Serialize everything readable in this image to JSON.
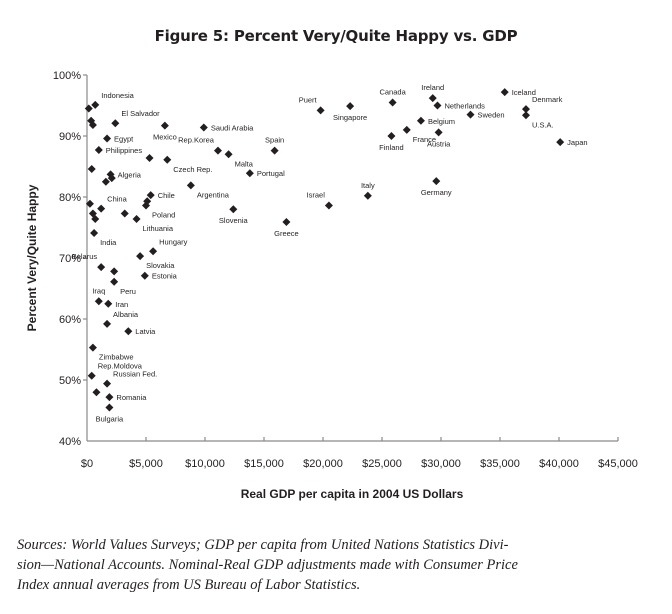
{
  "chart_data": {
    "type": "scatter",
    "title": "Figure 5: Percent Very/Quite Happy vs. GDP",
    "xlabel": "Real GDP per capita in 2004 US Dollars",
    "ylabel": "Percent Very/Quite Happy",
    "xlim": [
      0,
      45000
    ],
    "ylim": [
      40,
      100
    ],
    "x_ticks": [
      0,
      5000,
      10000,
      15000,
      20000,
      25000,
      30000,
      35000,
      40000,
      45000
    ],
    "x_tick_labels": [
      "$0",
      "$5,000",
      "$10,000",
      "$15,000",
      "$20,000",
      "$25,000",
      "$30,000",
      "$35,000",
      "$40,000",
      "$45,000"
    ],
    "y_ticks": [
      40,
      50,
      60,
      70,
      80,
      90,
      100
    ],
    "y_tick_labels": [
      "40%",
      "50%",
      "60%",
      "70%",
      "80%",
      "90%",
      "100%"
    ],
    "grid": false,
    "legend": "none",
    "marker": "diamond",
    "marker_color": "#231f20",
    "points": [
      {
        "label": "Indonesia",
        "x": 700,
        "y": 95.1,
        "label_pos": "above-right"
      },
      {
        "label": "",
        "x": 150,
        "y": 94.5
      },
      {
        "label": "",
        "x": 350,
        "y": 92.5
      },
      {
        "label": "",
        "x": 500,
        "y": 91.8
      },
      {
        "label": "El Salvador",
        "x": 2400,
        "y": 92.1,
        "label_pos": "above-right"
      },
      {
        "label": "Mexico",
        "x": 6600,
        "y": 91.7,
        "label_pos": "below"
      },
      {
        "label": "Saudi Arabia",
        "x": 9900,
        "y": 91.4,
        "label_pos": "right"
      },
      {
        "label": "Egypt",
        "x": 1700,
        "y": 89.6,
        "label_pos": "right"
      },
      {
        "label": "Philippines",
        "x": 1000,
        "y": 87.7,
        "label_pos": "right"
      },
      {
        "label": "",
        "x": 5300,
        "y": 86.4
      },
      {
        "label": "Czech Rep.",
        "x": 6800,
        "y": 86.1,
        "label_pos": "below-right"
      },
      {
        "label": "Rep.Korea",
        "x": 11100,
        "y": 87.6,
        "label_pos": "above-left"
      },
      {
        "label": "Malta",
        "x": 12000,
        "y": 87.0,
        "label_pos": "below-right"
      },
      {
        "label": "Spain",
        "x": 15900,
        "y": 87.6,
        "label_pos": "above"
      },
      {
        "label": "",
        "x": 400,
        "y": 84.6
      },
      {
        "label": "Algeria",
        "x": 2000,
        "y": 83.7,
        "label_pos": "right"
      },
      {
        "label": "",
        "x": 2100,
        "y": 83.1
      },
      {
        "label": "",
        "x": 1600,
        "y": 82.5
      },
      {
        "label": "Portugal",
        "x": 13800,
        "y": 83.9,
        "label_pos": "right"
      },
      {
        "label": "Argentina",
        "x": 8800,
        "y": 81.9,
        "label_pos": "below-right"
      },
      {
        "label": "Chile",
        "x": 5400,
        "y": 80.3,
        "label_pos": "right"
      },
      {
        "label": "",
        "x": 5100,
        "y": 79.3
      },
      {
        "label": "Poland",
        "x": 5000,
        "y": 78.6,
        "label_pos": "below-right"
      },
      {
        "label": "China",
        "x": 1200,
        "y": 78.1,
        "label_pos": "above-right"
      },
      {
        "label": "",
        "x": 250,
        "y": 78.9
      },
      {
        "label": "",
        "x": 500,
        "y": 77.3
      },
      {
        "label": "",
        "x": 700,
        "y": 76.4
      },
      {
        "label": "",
        "x": 3200,
        "y": 77.3
      },
      {
        "label": "Lithuania",
        "x": 4200,
        "y": 76.4,
        "label_pos": "below-right"
      },
      {
        "label": "Slovenia",
        "x": 12400,
        "y": 78.0,
        "label_pos": "below"
      },
      {
        "label": "Israel",
        "x": 20500,
        "y": 78.6,
        "label_pos": "above-left"
      },
      {
        "label": "Italy",
        "x": 23800,
        "y": 80.2,
        "label_pos": "above"
      },
      {
        "label": "Greece",
        "x": 16900,
        "y": 75.9,
        "label_pos": "below"
      },
      {
        "label": "India",
        "x": 600,
        "y": 74.1,
        "label_pos": "below-right"
      },
      {
        "label": "Hungary",
        "x": 5600,
        "y": 71.1,
        "label_pos": "above-right"
      },
      {
        "label": "Slovakia",
        "x": 4500,
        "y": 70.3,
        "label_pos": "below-right"
      },
      {
        "label": "Belarus",
        "x": 1200,
        "y": 68.5,
        "label_pos": "above-left"
      },
      {
        "label": "",
        "x": 2300,
        "y": 67.8
      },
      {
        "label": "Estonia",
        "x": 4900,
        "y": 67.1,
        "label_pos": "right"
      },
      {
        "label": "Peru",
        "x": 2300,
        "y": 66.1,
        "label_pos": "below-right"
      },
      {
        "label": "Iraq",
        "x": 1000,
        "y": 62.9,
        "label_pos": "above"
      },
      {
        "label": "Iran",
        "x": 1800,
        "y": 62.5,
        "label_pos": "right"
      },
      {
        "label": "Albania",
        "x": 1700,
        "y": 59.2,
        "label_pos": "above-right"
      },
      {
        "label": "Latvia",
        "x": 3500,
        "y": 58.0,
        "label_pos": "right"
      },
      {
        "label": "Zimbabwe",
        "x": 500,
        "y": 55.3,
        "label_pos": "below-right"
      },
      {
        "label": "Rep.Moldova",
        "x": 400,
        "y": 50.7,
        "label_pos": "above-right"
      },
      {
        "label": "Russian Fed.",
        "x": 1700,
        "y": 49.4,
        "label_pos": "above-right"
      },
      {
        "label": "",
        "x": 800,
        "y": 48.0
      },
      {
        "label": "Romania",
        "x": 1900,
        "y": 47.2,
        "label_pos": "right"
      },
      {
        "label": "Bulgaria",
        "x": 1900,
        "y": 45.5,
        "label_pos": "below"
      },
      {
        "label": "Puert",
        "x": 19800,
        "y": 94.2,
        "label_pos": "above-left"
      },
      {
        "label": "Singapore",
        "x": 22300,
        "y": 94.9,
        "label_pos": "below"
      },
      {
        "label": "Canada",
        "x": 25900,
        "y": 95.5,
        "label_pos": "above"
      },
      {
        "label": "Ireland",
        "x": 29300,
        "y": 96.2,
        "label_pos": "above"
      },
      {
        "label": "Netherlands",
        "x": 29700,
        "y": 95.0,
        "label_pos": "right"
      },
      {
        "label": "Belgium",
        "x": 28300,
        "y": 92.5,
        "label_pos": "right"
      },
      {
        "label": "France",
        "x": 27100,
        "y": 91.0,
        "label_pos": "below-right"
      },
      {
        "label": "Finland",
        "x": 25800,
        "y": 90.0,
        "label_pos": "below"
      },
      {
        "label": "Austria",
        "x": 29800,
        "y": 90.6,
        "label_pos": "below"
      },
      {
        "label": "Sweden",
        "x": 32500,
        "y": 93.5,
        "label_pos": "right"
      },
      {
        "label": "Iceland",
        "x": 35400,
        "y": 97.2,
        "label_pos": "right"
      },
      {
        "label": "Denmark",
        "x": 37200,
        "y": 94.4,
        "label_pos": "above-right"
      },
      {
        "label": "U.S.A.",
        "x": 37200,
        "y": 93.4,
        "label_pos": "below-right"
      },
      {
        "label": "Japan",
        "x": 40100,
        "y": 89.0,
        "label_pos": "right"
      },
      {
        "label": "Germany",
        "x": 29600,
        "y": 82.6,
        "label_pos": "below"
      }
    ]
  },
  "caption": "Sources: World Values Surveys; GDP per capita from United Nations Statistics Divi- sion—National Accounts. Nominal-Real GDP adjustments made with Consumer Price Index annual averages from US Bureau of Labor Statistics.",
  "caption_lines": [
    "Sources: World Values Surveys; GDP per capita from United Nations Statistics Divi-",
    "sion—National Accounts. Nominal-Real GDP adjustments made with Consumer Price",
    "Index annual averages from US Bureau of Labor Statistics."
  ]
}
